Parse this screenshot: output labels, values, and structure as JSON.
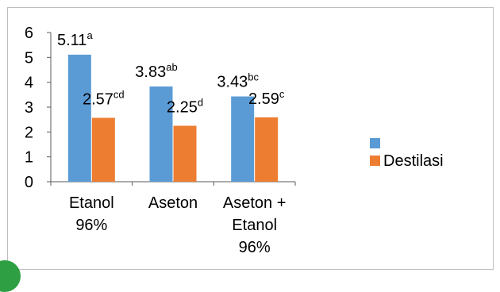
{
  "chart_data": {
    "type": "bar",
    "categories": [
      "Etanol 96%",
      "Aseton",
      "Aseton + Etanol 96%"
    ],
    "category_lines": [
      [
        "Etanol",
        "96%"
      ],
      [
        "Aseton"
      ],
      [
        "Aseton +",
        "Etanol",
        "96%"
      ]
    ],
    "series": [
      {
        "name": "",
        "color": "#5b9bd5",
        "values": [
          5.11,
          3.83,
          3.43
        ],
        "labels": [
          {
            "value": "5.11",
            "sup": "a"
          },
          {
            "value": "3.83",
            "sup": "ab"
          },
          {
            "value": "3.43",
            "sup": "bc"
          }
        ]
      },
      {
        "name": "Destilasi",
        "color": "#ed7d31",
        "values": [
          2.57,
          2.25,
          2.59
        ],
        "labels": [
          {
            "value": "2.57",
            "sup": "cd"
          },
          {
            "value": "2.25",
            "sup": "d"
          },
          {
            "value": "2.59",
            "sup": "c"
          }
        ]
      }
    ],
    "ylim": [
      0,
      6
    ],
    "yticks": [
      0,
      1,
      2,
      3,
      4,
      5,
      6
    ],
    "grid": false,
    "legend_position": "right"
  },
  "colors": {
    "axis": "#595959",
    "text": "#000000",
    "badge": "#2ea043"
  }
}
